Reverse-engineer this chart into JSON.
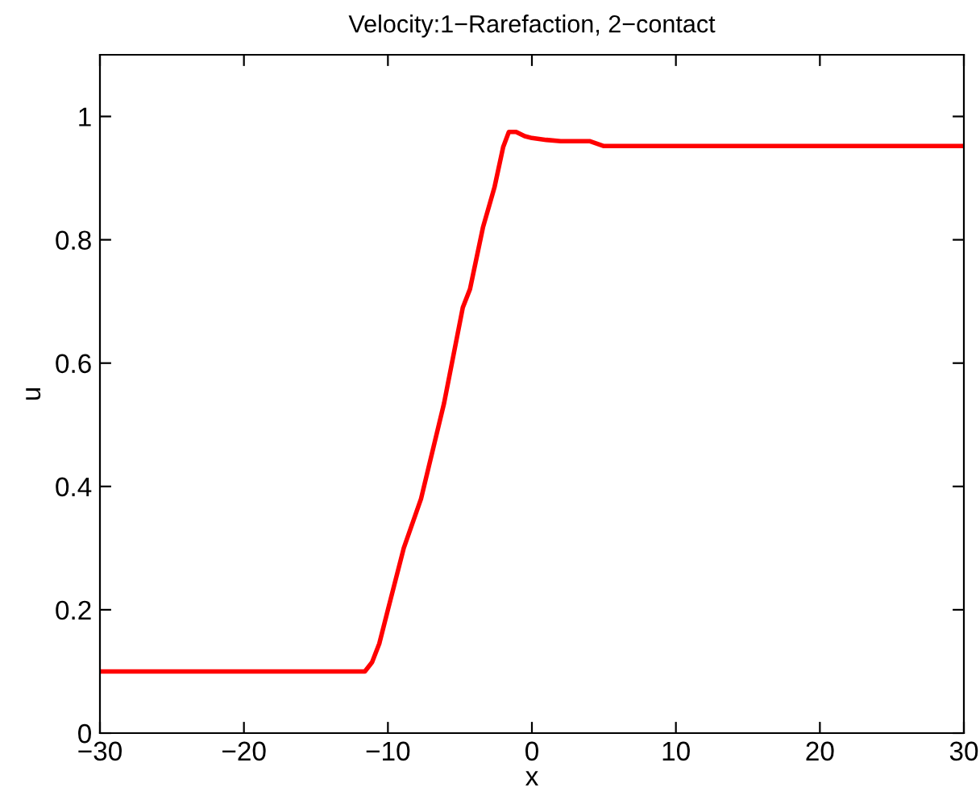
{
  "chart_data": {
    "type": "line",
    "title": "Velocity:1−Rarefaction, 2−contact",
    "xlabel": "x",
    "ylabel": "u",
    "series": [
      {
        "color": "#ff0000",
        "x": [
          -30,
          -11.6,
          -11.1,
          -10.6,
          -10,
          -8.9,
          -7.7,
          -6.1,
          -4.8,
          -4.3,
          -3.4,
          -2.6,
          -2,
          -1.6,
          -1.1,
          -0.5,
          0,
          1,
          2,
          4,
          5,
          30
        ],
        "values": [
          0.1,
          0.1,
          0.115,
          0.145,
          0.2,
          0.3,
          0.38,
          0.535,
          0.69,
          0.72,
          0.82,
          0.885,
          0.95,
          0.975,
          0.975,
          0.968,
          0.965,
          0.962,
          0.96,
          0.96,
          0.952,
          0.952
        ]
      }
    ],
    "xlim": [
      -30,
      30
    ],
    "xticks": [
      -30,
      -20,
      -10,
      0,
      10,
      20,
      30
    ],
    "ylim": [
      0,
      1.1
    ],
    "yticks": [
      0,
      0.2,
      0.4,
      0.6,
      0.8,
      1
    ],
    "grid": false,
    "legend": false,
    "line_style": "solid",
    "marker": "none"
  }
}
